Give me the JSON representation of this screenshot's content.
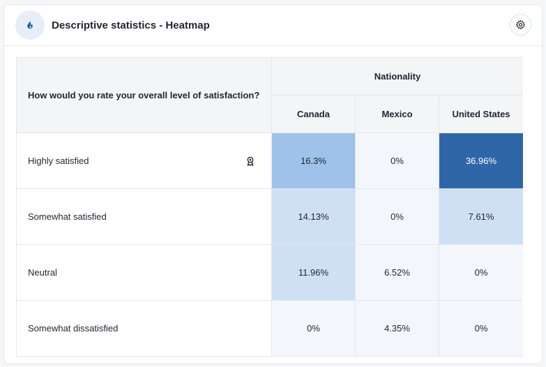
{
  "header": {
    "title": "Descriptive statistics - Heatmap",
    "icon": "flame-icon",
    "settings_icon": "gear-icon"
  },
  "table": {
    "question": "How would you rate your overall level of satisfaction?",
    "group_label": "Nationality",
    "columns": [
      "Canada",
      "Mexico",
      "United States"
    ],
    "rows": [
      {
        "label": "Highly satisfied",
        "badge": "award-icon",
        "values": [
          "16.3%",
          "0%",
          "36.96%"
        ]
      },
      {
        "label": "Somewhat satisfied",
        "values": [
          "14.13%",
          "0%",
          "7.61%"
        ]
      },
      {
        "label": "Neutral",
        "values": [
          "11.96%",
          "6.52%",
          "0%"
        ]
      },
      {
        "label": "Somewhat dissatisfied",
        "values": [
          "0%",
          "4.35%",
          "0%"
        ]
      }
    ]
  },
  "colors": {
    "accent": "#1a5fb4",
    "heat_max": "#2f66a8",
    "heat_high": "#9ec2ea",
    "heat_mid": "#cfe0f5",
    "heat_low": "#f3f6fb"
  }
}
